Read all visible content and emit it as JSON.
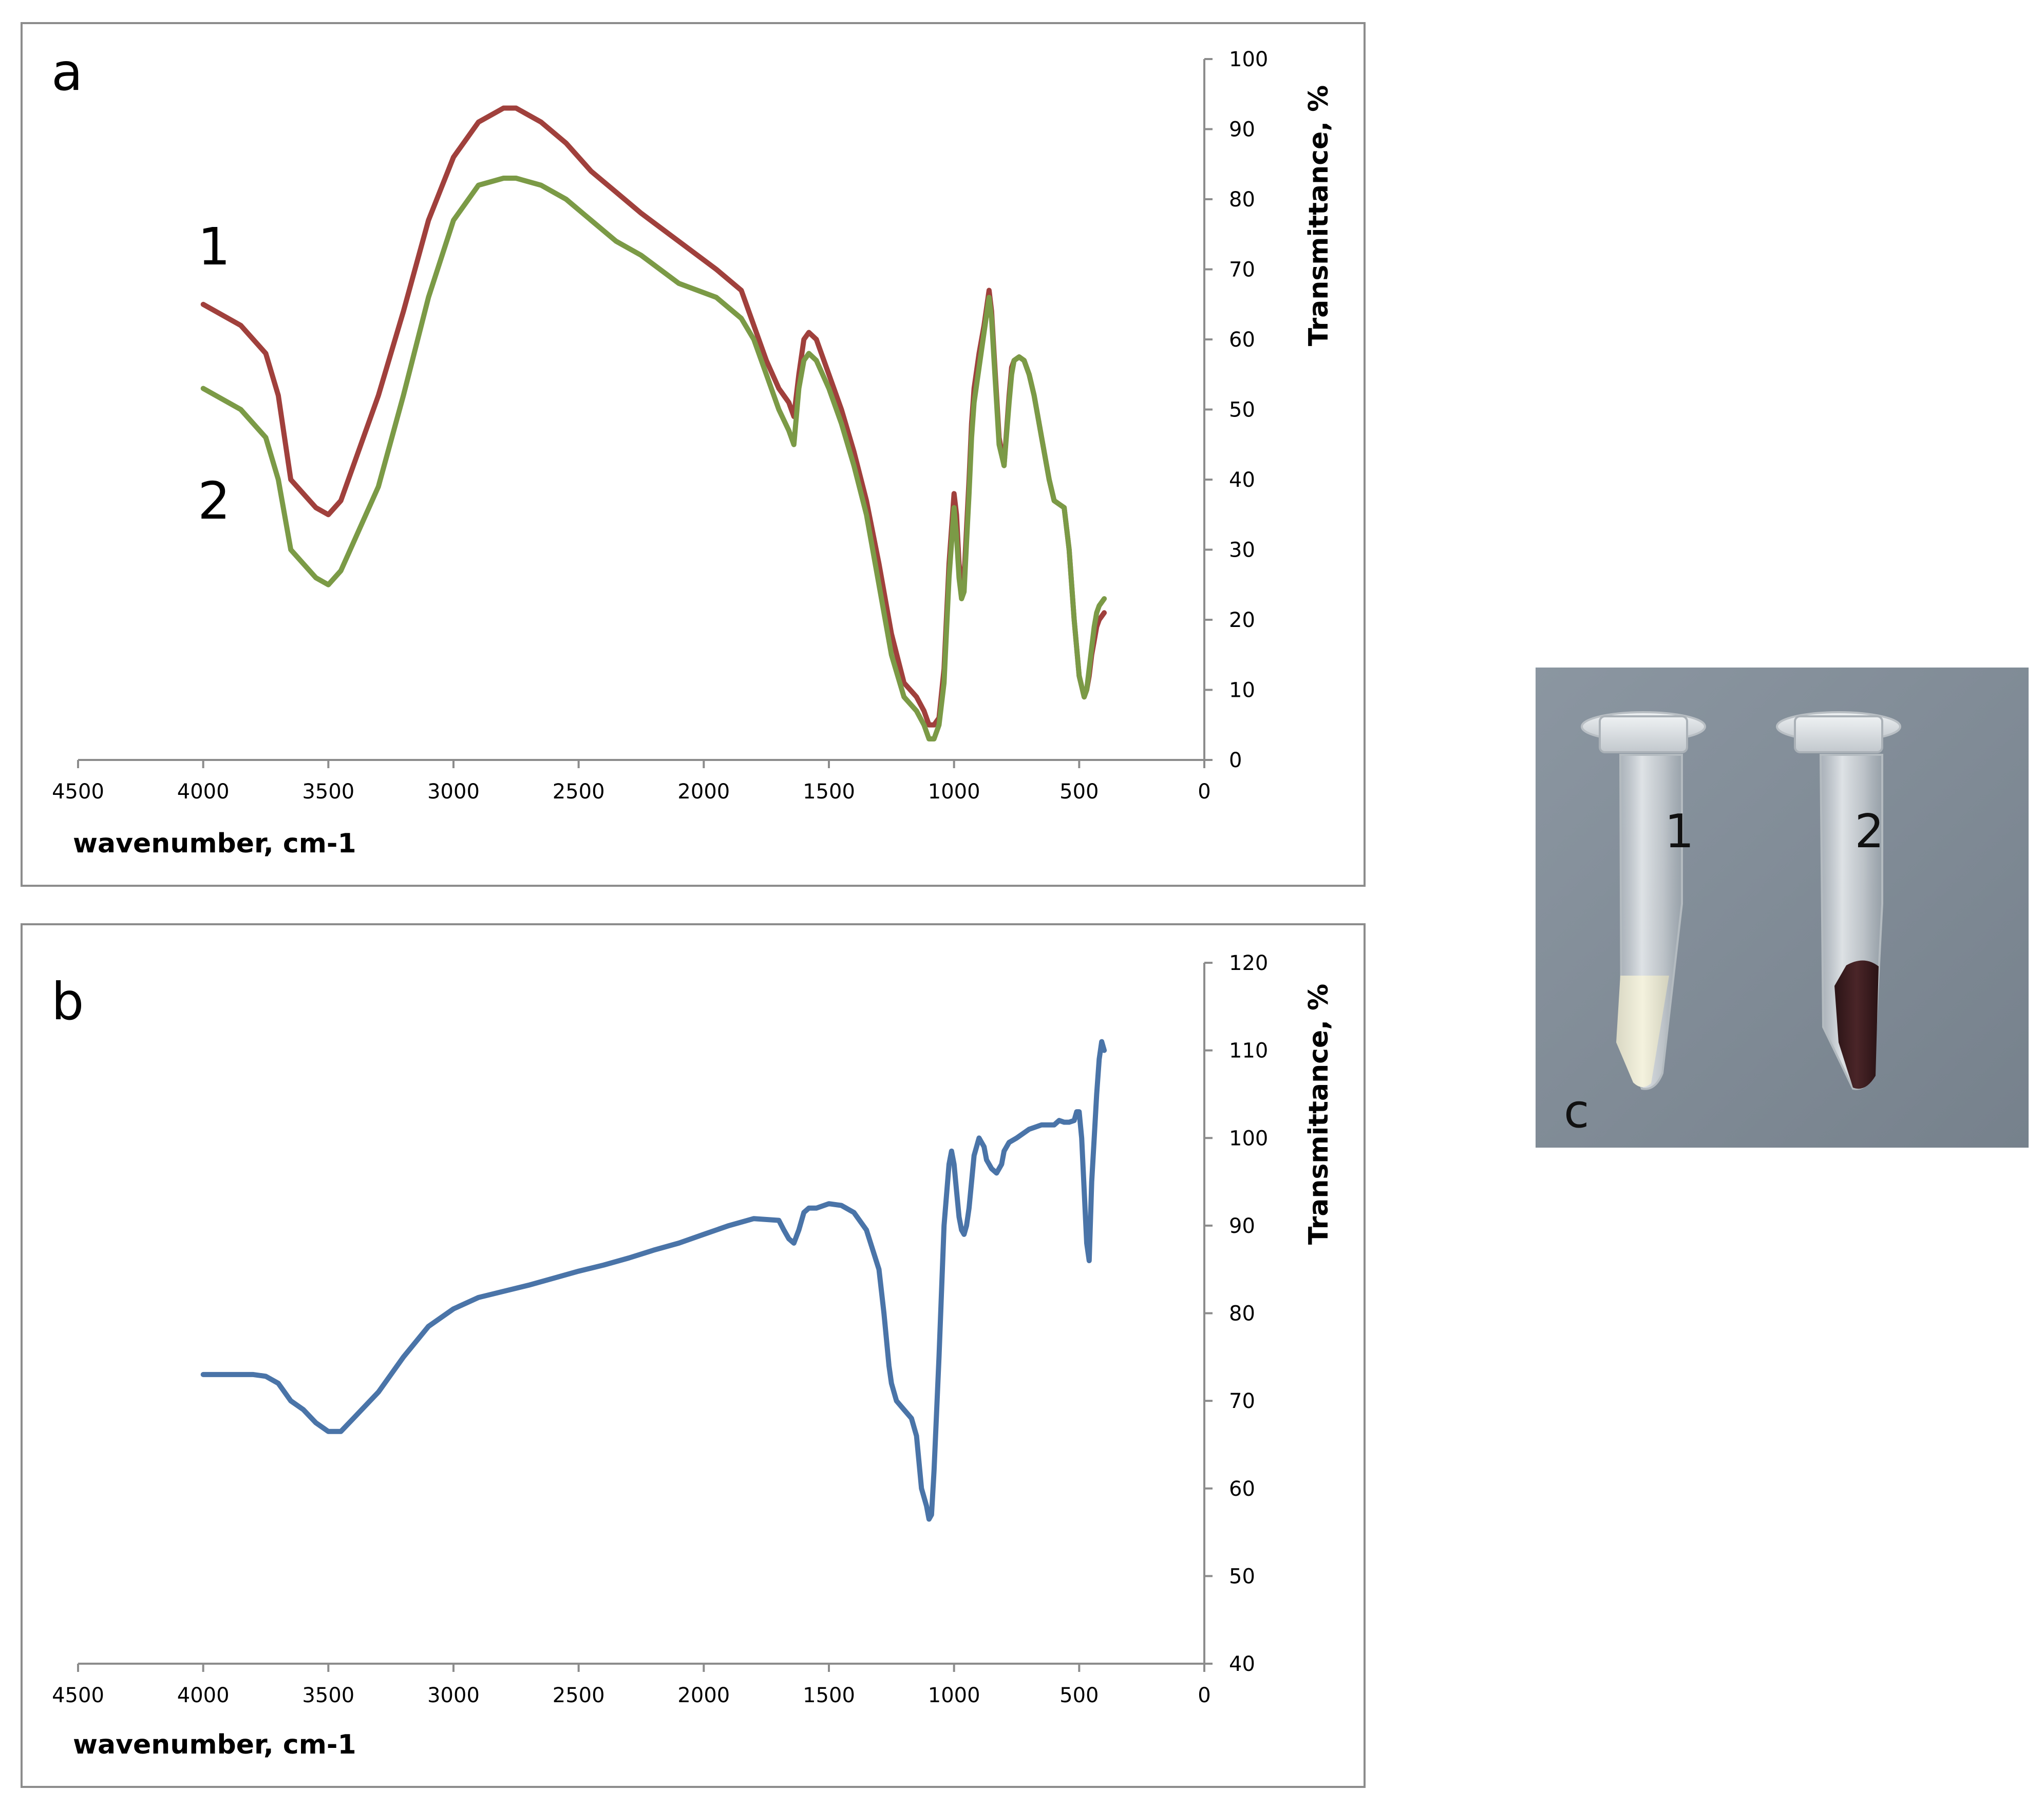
{
  "chart_data": [
    {
      "panel": "a",
      "type": "line",
      "xlabel": "wavenumber, cm-1",
      "ylabel": "Transmittance, %",
      "xlim": [
        4500,
        0
      ],
      "ylim": [
        0,
        100
      ],
      "x_ticks": [
        "4500",
        "4000",
        "3500",
        "3000",
        "2500",
        "2000",
        "1500",
        "1000",
        "500",
        "0"
      ],
      "y_ticks": [
        "0",
        "10",
        "20",
        "30",
        "40",
        "50",
        "60",
        "70",
        "80",
        "90",
        "100"
      ],
      "grid": false,
      "series": [
        {
          "name": "1",
          "color": "#a0403c",
          "x": [
            4000,
            3850,
            3750,
            3700,
            3650,
            3600,
            3550,
            3500,
            3450,
            3400,
            3300,
            3200,
            3100,
            3000,
            2900,
            2800,
            2750,
            2650,
            2550,
            2450,
            2350,
            2250,
            2100,
            1950,
            1850,
            1800,
            1750,
            1700,
            1660,
            1640,
            1620,
            1600,
            1580,
            1550,
            1500,
            1450,
            1400,
            1350,
            1300,
            1250,
            1200,
            1150,
            1120,
            1100,
            1080,
            1060,
            1040,
            1020,
            1000,
            990,
            980,
            970,
            960,
            950,
            940,
            930,
            920,
            900,
            880,
            860,
            850,
            840,
            820,
            800,
            780,
            770,
            760,
            740,
            720,
            700,
            680,
            650,
            620,
            600,
            580,
            560,
            540,
            520,
            500,
            480,
            470,
            460,
            450,
            440,
            430,
            420,
            400
          ],
          "y": [
            65,
            62,
            58,
            52,
            40,
            38,
            36,
            35,
            37,
            42,
            52,
            64,
            77,
            86,
            91,
            93,
            93,
            91,
            88,
            84,
            81,
            78,
            74,
            70,
            67,
            62,
            57,
            53,
            51,
            49,
            55,
            60,
            61,
            60,
            55,
            50,
            44,
            37,
            28,
            18,
            11,
            9,
            7,
            5,
            5,
            6,
            13,
            28,
            38,
            35,
            28,
            25,
            26,
            33,
            40,
            48,
            53,
            58,
            62,
            67,
            64,
            58,
            46,
            42,
            52,
            56,
            57,
            57.5,
            57,
            55,
            52,
            46,
            40,
            37,
            36.5,
            36,
            30,
            20,
            12,
            9,
            10,
            12,
            15,
            17,
            19,
            20,
            21
          ]
        },
        {
          "name": "2",
          "color": "#7b9a46",
          "x": [
            4000,
            3850,
            3750,
            3700,
            3650,
            3600,
            3550,
            3500,
            3450,
            3400,
            3300,
            3200,
            3100,
            3000,
            2900,
            2800,
            2750,
            2650,
            2550,
            2450,
            2350,
            2250,
            2100,
            1950,
            1850,
            1800,
            1750,
            1700,
            1660,
            1640,
            1620,
            1600,
            1580,
            1550,
            1500,
            1450,
            1400,
            1350,
            1300,
            1250,
            1200,
            1150,
            1120,
            1100,
            1080,
            1060,
            1040,
            1020,
            1000,
            990,
            980,
            970,
            960,
            950,
            940,
            930,
            920,
            900,
            880,
            860,
            850,
            840,
            820,
            800,
            780,
            770,
            760,
            740,
            720,
            700,
            680,
            650,
            620,
            600,
            580,
            560,
            540,
            520,
            500,
            480,
            470,
            460,
            450,
            440,
            430,
            420,
            400
          ],
          "y": [
            53,
            50,
            46,
            40,
            30,
            28,
            26,
            25,
            27,
            31,
            39,
            52,
            66,
            77,
            82,
            83,
            83,
            82,
            80,
            77,
            74,
            72,
            68,
            66,
            63,
            60,
            55,
            50,
            47,
            45,
            53,
            57,
            58,
            57,
            53,
            48,
            42,
            35,
            25,
            15,
            9,
            7,
            5,
            3,
            3,
            5,
            11,
            26,
            36,
            32,
            26,
            23,
            24,
            31,
            38,
            46,
            51,
            56,
            61,
            66,
            63,
            57,
            45,
            42,
            51,
            55,
            57,
            57.5,
            57,
            55,
            52,
            46,
            40,
            37,
            36.5,
            36,
            30,
            20,
            12,
            9,
            10,
            13,
            16,
            19,
            21,
            22,
            23
          ]
        }
      ]
    },
    {
      "panel": "b",
      "type": "line",
      "xlabel": "wavenumber, cm-1",
      "ylabel": "Transmittance, %",
      "xlim": [
        4500,
        0
      ],
      "ylim": [
        40,
        120
      ],
      "x_ticks": [
        "4500",
        "4000",
        "3500",
        "3000",
        "2500",
        "2000",
        "1500",
        "1000",
        "500",
        "0"
      ],
      "y_ticks": [
        "40",
        "50",
        "60",
        "70",
        "80",
        "90",
        "100",
        "110",
        "120"
      ],
      "grid": false,
      "series": [
        {
          "name": "",
          "color": "#4a74a8",
          "x": [
            4000,
            3900,
            3800,
            3750,
            3700,
            3650,
            3600,
            3550,
            3500,
            3450,
            3400,
            3300,
            3200,
            3100,
            3000,
            2900,
            2800,
            2700,
            2600,
            2500,
            2400,
            2300,
            2200,
            2100,
            2000,
            1900,
            1800,
            1700,
            1680,
            1660,
            1640,
            1620,
            1600,
            1580,
            1550,
            1500,
            1450,
            1400,
            1350,
            1300,
            1280,
            1260,
            1250,
            1230,
            1200,
            1170,
            1150,
            1130,
            1110,
            1100,
            1090,
            1080,
            1060,
            1040,
            1020,
            1010,
            1000,
            990,
            980,
            970,
            960,
            950,
            940,
            930,
            920,
            900,
            880,
            870,
            860,
            850,
            830,
            810,
            800,
            780,
            750,
            700,
            650,
            600,
            580,
            560,
            540,
            520,
            510,
            500,
            490,
            480,
            470,
            460,
            450,
            440,
            430,
            420,
            410,
            400
          ],
          "y": [
            73,
            73,
            73,
            72.8,
            72,
            70,
            69,
            67.5,
            66.5,
            66.5,
            68,
            71,
            75,
            78.5,
            80.5,
            81.8,
            82.5,
            83.2,
            84,
            84.8,
            85.5,
            86.3,
            87.2,
            88,
            89,
            90,
            90.8,
            90.6,
            89.5,
            88.5,
            88,
            89.5,
            91.5,
            92,
            92,
            92.5,
            92.3,
            91.5,
            89.5,
            85,
            80,
            74,
            72,
            70,
            69,
            68,
            66,
            60,
            58,
            56.5,
            57,
            62,
            75,
            90,
            97,
            98.5,
            97,
            94,
            91,
            89.5,
            89,
            90,
            92,
            95,
            98,
            100,
            99,
            97.5,
            97,
            96.5,
            96,
            97,
            98.5,
            99.5,
            100,
            101,
            101.5,
            101.5,
            102,
            101.8,
            101.8,
            102,
            103,
            103,
            100,
            94,
            88,
            86,
            95,
            100,
            105,
            109,
            111,
            110
          ]
        }
      ]
    }
  ],
  "panel_labels": {
    "a": "a",
    "b": "b",
    "c": "c"
  },
  "curve_labels": {
    "one": "1",
    "two": "2"
  },
  "photo": {
    "tube_labels": [
      "1",
      "2"
    ],
    "background_color": "#7f8a96",
    "tube1_content_color": "#f2efda",
    "tube2_content_color": "#3d1d1f"
  }
}
